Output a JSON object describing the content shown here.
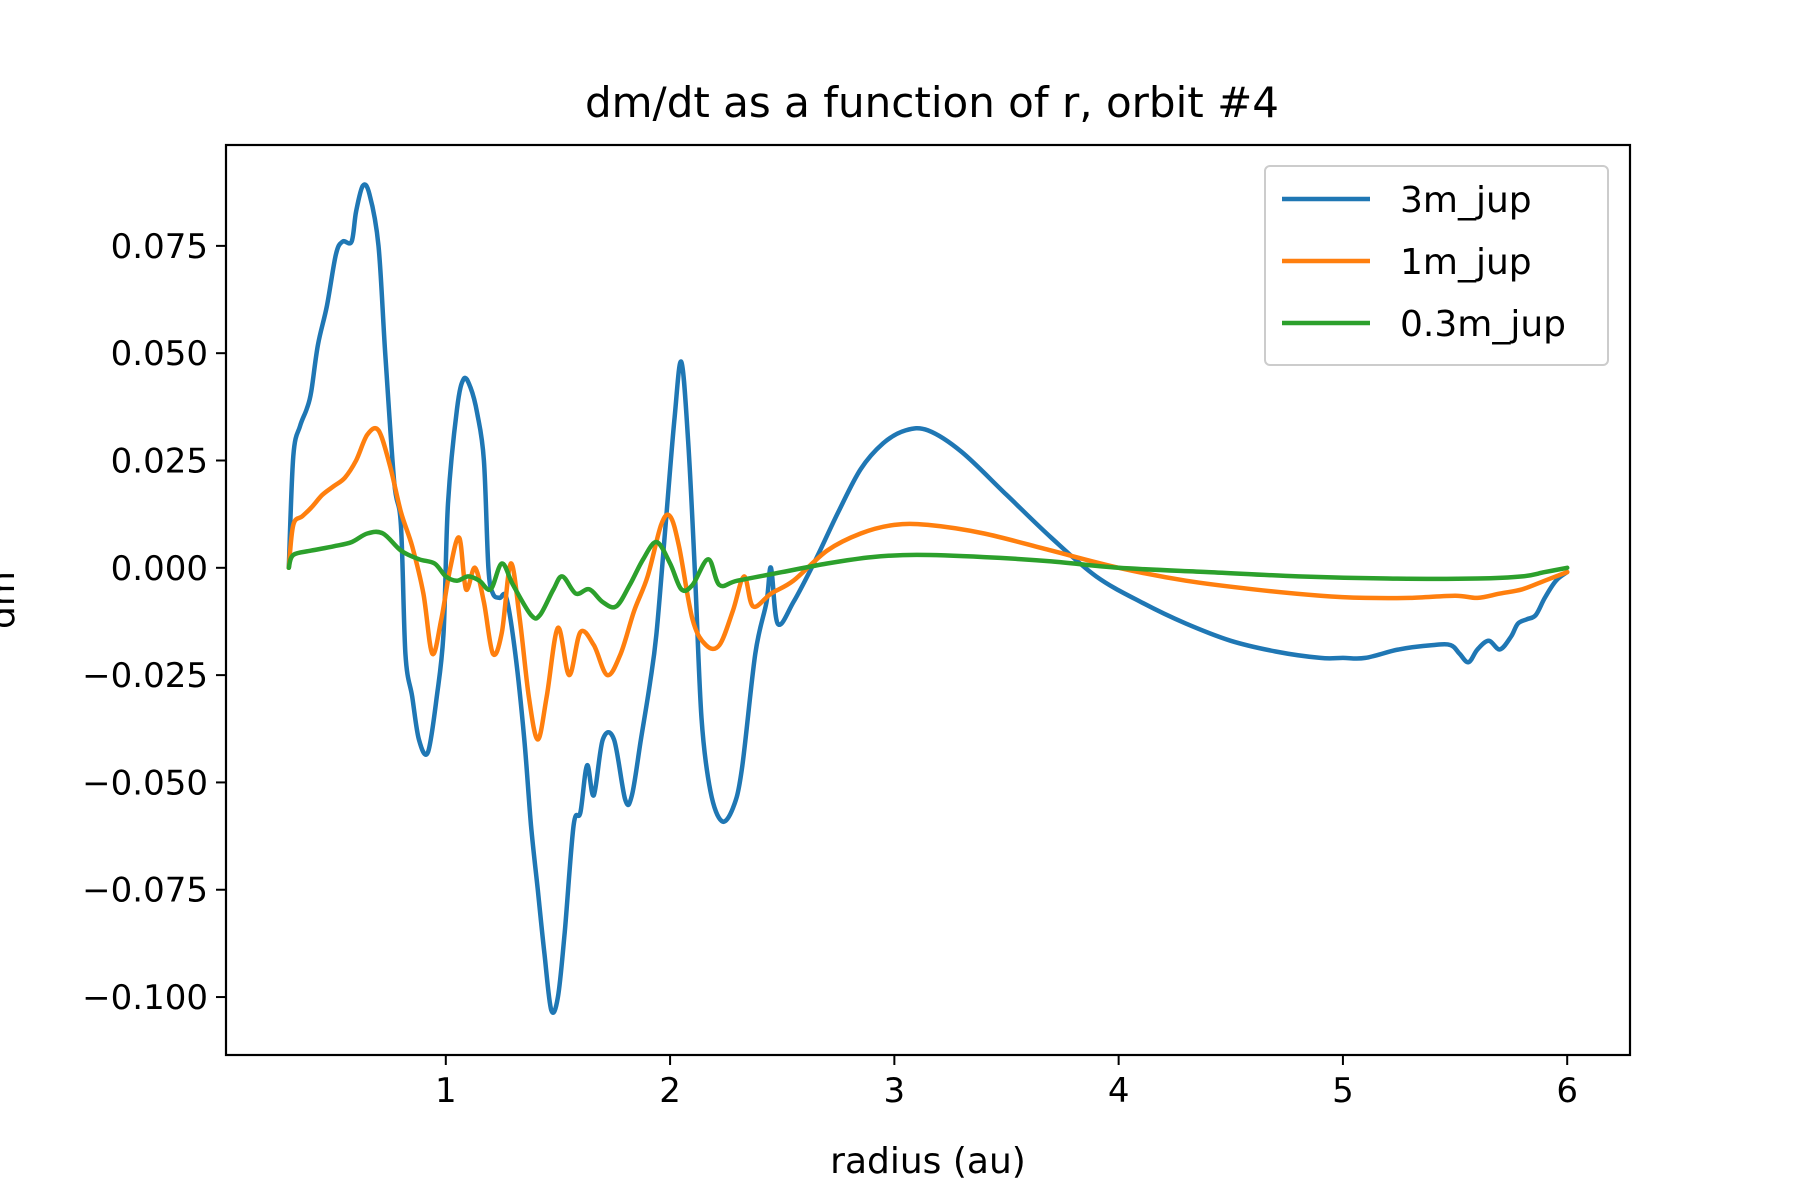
{
  "chart_data": {
    "type": "line",
    "title": "dm/dt as a function of r, orbit #4",
    "xlabel": "radius (au)",
    "ylabel": "dm",
    "xlim": [
      0.02,
      6.28
    ],
    "ylim": [
      -0.1135,
      0.0985
    ],
    "x_ticks": [
      1,
      2,
      3,
      4,
      5,
      6
    ],
    "x_tick_labels": [
      "1",
      "2",
      "3",
      "4",
      "5",
      "6"
    ],
    "y_ticks": [
      0.075,
      0.05,
      0.025,
      0.0,
      -0.025,
      -0.05,
      -0.075,
      -0.1
    ],
    "y_tick_labels": [
      "0.075",
      "0.050",
      "0.025",
      "0.000",
      "−0.025",
      "−0.050",
      "−0.075",
      "−0.100"
    ],
    "grid": false,
    "legend_position": "top-right",
    "series": [
      {
        "name": "3m_jup",
        "color": "#1f77b4",
        "points": [
          [
            0.3,
            0.0
          ],
          [
            0.32,
            0.026
          ],
          [
            0.35,
            0.033
          ],
          [
            0.38,
            0.037
          ],
          [
            0.4,
            0.041
          ],
          [
            0.43,
            0.052
          ],
          [
            0.47,
            0.061
          ],
          [
            0.51,
            0.073
          ],
          [
            0.54,
            0.076
          ],
          [
            0.58,
            0.076
          ],
          [
            0.6,
            0.083
          ],
          [
            0.63,
            0.089
          ],
          [
            0.66,
            0.087
          ],
          [
            0.7,
            0.075
          ],
          [
            0.73,
            0.05
          ],
          [
            0.77,
            0.02
          ],
          [
            0.8,
            0.01
          ],
          [
            0.82,
            -0.02
          ],
          [
            0.85,
            -0.03
          ],
          [
            0.88,
            -0.04
          ],
          [
            0.92,
            -0.043
          ],
          [
            0.96,
            -0.03
          ],
          [
            0.99,
            -0.015
          ],
          [
            1.01,
            0.015
          ],
          [
            1.05,
            0.037
          ],
          [
            1.08,
            0.044
          ],
          [
            1.11,
            0.042
          ],
          [
            1.14,
            0.036
          ],
          [
            1.17,
            0.025
          ],
          [
            1.19,
            0.0
          ],
          [
            1.21,
            -0.006
          ],
          [
            1.24,
            -0.007
          ],
          [
            1.27,
            -0.007
          ],
          [
            1.31,
            -0.02
          ],
          [
            1.35,
            -0.04
          ],
          [
            1.38,
            -0.06
          ],
          [
            1.41,
            -0.075
          ],
          [
            1.44,
            -0.09
          ],
          [
            1.47,
            -0.103
          ],
          [
            1.5,
            -0.1
          ],
          [
            1.53,
            -0.085
          ],
          [
            1.57,
            -0.06
          ],
          [
            1.6,
            -0.057
          ],
          [
            1.63,
            -0.046
          ],
          [
            1.66,
            -0.053
          ],
          [
            1.7,
            -0.04
          ],
          [
            1.75,
            -0.04
          ],
          [
            1.8,
            -0.054
          ],
          [
            1.83,
            -0.053
          ],
          [
            1.87,
            -0.04
          ],
          [
            1.91,
            -0.027
          ],
          [
            1.94,
            -0.015
          ],
          [
            1.98,
            0.01
          ],
          [
            2.02,
            0.035
          ],
          [
            2.05,
            0.048
          ],
          [
            2.08,
            0.03
          ],
          [
            2.11,
            0.0
          ],
          [
            2.14,
            -0.035
          ],
          [
            2.18,
            -0.052
          ],
          [
            2.23,
            -0.059
          ],
          [
            2.28,
            -0.056
          ],
          [
            2.32,
            -0.047
          ],
          [
            2.38,
            -0.02
          ],
          [
            2.43,
            -0.008
          ],
          [
            2.45,
            0.0
          ],
          [
            2.48,
            -0.013
          ],
          [
            2.55,
            -0.008
          ],
          [
            2.65,
            0.002
          ],
          [
            2.75,
            0.013
          ],
          [
            2.85,
            0.023
          ],
          [
            2.95,
            0.029
          ],
          [
            3.05,
            0.032
          ],
          [
            3.15,
            0.032
          ],
          [
            3.3,
            0.027
          ],
          [
            3.5,
            0.017
          ],
          [
            3.7,
            0.007
          ],
          [
            3.9,
            -0.002
          ],
          [
            4.1,
            -0.008
          ],
          [
            4.3,
            -0.013
          ],
          [
            4.5,
            -0.017
          ],
          [
            4.7,
            -0.0195
          ],
          [
            4.9,
            -0.021
          ],
          [
            5.0,
            -0.021
          ],
          [
            5.1,
            -0.021
          ],
          [
            5.25,
            -0.019
          ],
          [
            5.4,
            -0.018
          ],
          [
            5.48,
            -0.018
          ],
          [
            5.52,
            -0.02
          ],
          [
            5.56,
            -0.022
          ],
          [
            5.6,
            -0.019
          ],
          [
            5.65,
            -0.017
          ],
          [
            5.7,
            -0.019
          ],
          [
            5.75,
            -0.016
          ],
          [
            5.78,
            -0.013
          ],
          [
            5.82,
            -0.012
          ],
          [
            5.86,
            -0.011
          ],
          [
            5.9,
            -0.007
          ],
          [
            5.95,
            -0.003
          ],
          [
            6.0,
            -0.001
          ]
        ]
      },
      {
        "name": "1m_jup",
        "color": "#ff7f0e",
        "points": [
          [
            0.3,
            0.0
          ],
          [
            0.32,
            0.01
          ],
          [
            0.36,
            0.012
          ],
          [
            0.4,
            0.014
          ],
          [
            0.45,
            0.017
          ],
          [
            0.5,
            0.019
          ],
          [
            0.55,
            0.021
          ],
          [
            0.6,
            0.025
          ],
          [
            0.65,
            0.031
          ],
          [
            0.7,
            0.032
          ],
          [
            0.75,
            0.024
          ],
          [
            0.8,
            0.013
          ],
          [
            0.85,
            0.005
          ],
          [
            0.9,
            -0.006
          ],
          [
            0.94,
            -0.02
          ],
          [
            0.98,
            -0.012
          ],
          [
            1.02,
            0.0
          ],
          [
            1.06,
            0.007
          ],
          [
            1.09,
            -0.005
          ],
          [
            1.13,
            0.0
          ],
          [
            1.17,
            -0.008
          ],
          [
            1.21,
            -0.02
          ],
          [
            1.25,
            -0.015
          ],
          [
            1.29,
            0.001
          ],
          [
            1.33,
            -0.012
          ],
          [
            1.37,
            -0.03
          ],
          [
            1.41,
            -0.04
          ],
          [
            1.45,
            -0.03
          ],
          [
            1.5,
            -0.014
          ],
          [
            1.55,
            -0.025
          ],
          [
            1.6,
            -0.015
          ],
          [
            1.66,
            -0.018
          ],
          [
            1.72,
            -0.025
          ],
          [
            1.78,
            -0.02
          ],
          [
            1.84,
            -0.01
          ],
          [
            1.9,
            -0.002
          ],
          [
            1.96,
            0.01
          ],
          [
            2.0,
            0.012
          ],
          [
            2.04,
            0.005
          ],
          [
            2.1,
            -0.012
          ],
          [
            2.16,
            -0.018
          ],
          [
            2.22,
            -0.018
          ],
          [
            2.28,
            -0.01
          ],
          [
            2.33,
            -0.002
          ],
          [
            2.37,
            -0.009
          ],
          [
            2.45,
            -0.006
          ],
          [
            2.55,
            -0.003
          ],
          [
            2.7,
            0.004
          ],
          [
            2.85,
            0.008
          ],
          [
            3.0,
            0.01
          ],
          [
            3.15,
            0.01
          ],
          [
            3.4,
            0.008
          ],
          [
            3.7,
            0.004
          ],
          [
            4.0,
            0.0
          ],
          [
            4.3,
            -0.003
          ],
          [
            4.6,
            -0.005
          ],
          [
            4.9,
            -0.0065
          ],
          [
            5.1,
            -0.007
          ],
          [
            5.3,
            -0.007
          ],
          [
            5.5,
            -0.0065
          ],
          [
            5.6,
            -0.007
          ],
          [
            5.7,
            -0.006
          ],
          [
            5.8,
            -0.005
          ],
          [
            5.9,
            -0.003
          ],
          [
            6.0,
            -0.001
          ]
        ]
      },
      {
        "name": "0.3m_jup",
        "color": "#2ca02c",
        "points": [
          [
            0.3,
            0.0
          ],
          [
            0.32,
            0.003
          ],
          [
            0.4,
            0.004
          ],
          [
            0.5,
            0.005
          ],
          [
            0.58,
            0.006
          ],
          [
            0.65,
            0.008
          ],
          [
            0.72,
            0.008
          ],
          [
            0.8,
            0.004
          ],
          [
            0.88,
            0.002
          ],
          [
            0.95,
            0.001
          ],
          [
            1.0,
            -0.002
          ],
          [
            1.05,
            -0.003
          ],
          [
            1.1,
            -0.002
          ],
          [
            1.15,
            -0.003
          ],
          [
            1.2,
            -0.005
          ],
          [
            1.25,
            0.001
          ],
          [
            1.3,
            -0.004
          ],
          [
            1.38,
            -0.011
          ],
          [
            1.42,
            -0.011
          ],
          [
            1.48,
            -0.005
          ],
          [
            1.52,
            -0.002
          ],
          [
            1.58,
            -0.006
          ],
          [
            1.64,
            -0.005
          ],
          [
            1.7,
            -0.008
          ],
          [
            1.76,
            -0.009
          ],
          [
            1.82,
            -0.004
          ],
          [
            1.88,
            0.002
          ],
          [
            1.94,
            0.006
          ],
          [
            2.0,
            0.001
          ],
          [
            2.05,
            -0.005
          ],
          [
            2.1,
            -0.004
          ],
          [
            2.17,
            0.002
          ],
          [
            2.22,
            -0.004
          ],
          [
            2.3,
            -0.003
          ],
          [
            2.5,
            -0.001
          ],
          [
            2.7,
            0.001
          ],
          [
            2.9,
            0.0025
          ],
          [
            3.1,
            0.003
          ],
          [
            3.4,
            0.0025
          ],
          [
            3.7,
            0.0015
          ],
          [
            4.0,
            0.0
          ],
          [
            4.4,
            -0.001
          ],
          [
            4.8,
            -0.002
          ],
          [
            5.2,
            -0.0025
          ],
          [
            5.6,
            -0.0025
          ],
          [
            5.8,
            -0.002
          ],
          [
            5.9,
            -0.001
          ],
          [
            6.0,
            0.0
          ]
        ]
      }
    ]
  }
}
